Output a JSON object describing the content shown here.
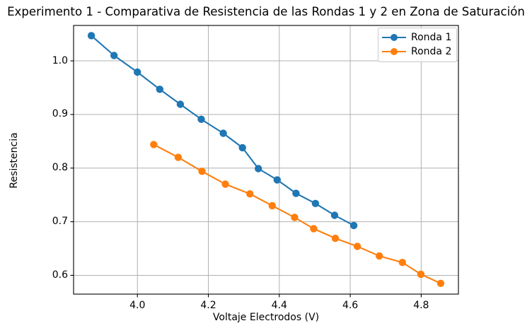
{
  "chart_data": {
    "type": "line",
    "title": "Experimento 1 - Comparativa de Resistencia de las Rondas 1 y 2 en Zona de Saturación",
    "xlabel": "Voltaje Electrodos (V)",
    "ylabel": "Resistencia",
    "xlim": [
      3.82,
      4.905
    ],
    "ylim": [
      0.565,
      1.066
    ],
    "xticks": [
      4.0,
      4.2,
      4.4,
      4.6,
      4.8
    ],
    "xtick_labels": [
      "4.0",
      "4.2",
      "4.4",
      "4.6",
      "4.8"
    ],
    "yticks": [
      0.6,
      0.7,
      0.8,
      0.9,
      1.0
    ],
    "ytick_labels": [
      "0.6",
      "0.7",
      "0.8",
      "0.9",
      "1.0"
    ],
    "grid": true,
    "grid_color": "#b0b0b0",
    "legend_position": "upper right",
    "series": [
      {
        "name": "Ronda 1",
        "color": "#1f77b4",
        "marker": "circle",
        "x": [
          3.87,
          3.934,
          4.0,
          4.063,
          4.121,
          4.18,
          4.242,
          4.296,
          4.341,
          4.394,
          4.447,
          4.502,
          4.556,
          4.61
        ],
        "y": [
          1.047,
          1.01,
          0.979,
          0.947,
          0.919,
          0.891,
          0.865,
          0.838,
          0.799,
          0.778,
          0.753,
          0.734,
          0.712,
          0.693
        ]
      },
      {
        "name": "Ronda 2",
        "color": "#ff7f0e",
        "marker": "circle",
        "x": [
          4.046,
          4.115,
          4.182,
          4.248,
          4.317,
          4.38,
          4.443,
          4.497,
          4.558,
          4.62,
          4.682,
          4.747,
          4.799,
          4.855
        ],
        "y": [
          0.844,
          0.82,
          0.794,
          0.77,
          0.752,
          0.73,
          0.708,
          0.687,
          0.669,
          0.654,
          0.636,
          0.624,
          0.602,
          0.585
        ]
      }
    ]
  }
}
